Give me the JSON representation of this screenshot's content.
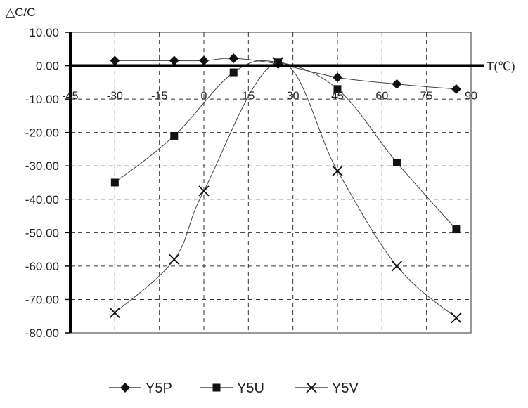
{
  "chart_data": {
    "type": "line",
    "ylabel": "△C/C",
    "xlabel": "T(℃)",
    "xlim": [
      -45,
      90
    ],
    "ylim": [
      -80,
      10
    ],
    "x_ticks": [
      -45,
      -30,
      -15,
      0,
      15,
      30,
      45,
      60,
      75,
      90
    ],
    "x_tick_labels": [
      "-45",
      "-30",
      "-15",
      "0",
      "15",
      "30",
      "45",
      "60",
      "75",
      "90"
    ],
    "y_ticks": [
      10,
      0,
      -10,
      -20,
      -30,
      -40,
      -50,
      -60,
      -70,
      -80
    ],
    "y_tick_labels": [
      "10.00",
      "0.00",
      "-10.00",
      "-20.00",
      "-30.00",
      "-40.00",
      "-50.00",
      "-60.00",
      "-70.00",
      "-80.00"
    ],
    "grid": true,
    "legend": "bottom",
    "series": [
      {
        "name": "Y5P",
        "marker": "diamond",
        "x": [
          -30,
          -10,
          0,
          10,
          25,
          45,
          65,
          85
        ],
        "y": [
          1.5,
          1.5,
          1.5,
          2.2,
          0.5,
          -3.5,
          -5.5,
          -7
        ]
      },
      {
        "name": "Y5U",
        "marker": "square",
        "x": [
          -30,
          -10,
          10,
          25,
          45,
          65,
          85
        ],
        "y": [
          -35,
          -21,
          -2,
          1,
          -7,
          -29,
          -49
        ]
      },
      {
        "name": "Y5V",
        "marker": "x",
        "x": [
          -30,
          -10,
          0,
          25,
          45,
          65,
          85
        ],
        "y": [
          -74,
          -58,
          -37.5,
          1,
          -31.5,
          -60,
          -75.5
        ]
      }
    ]
  }
}
